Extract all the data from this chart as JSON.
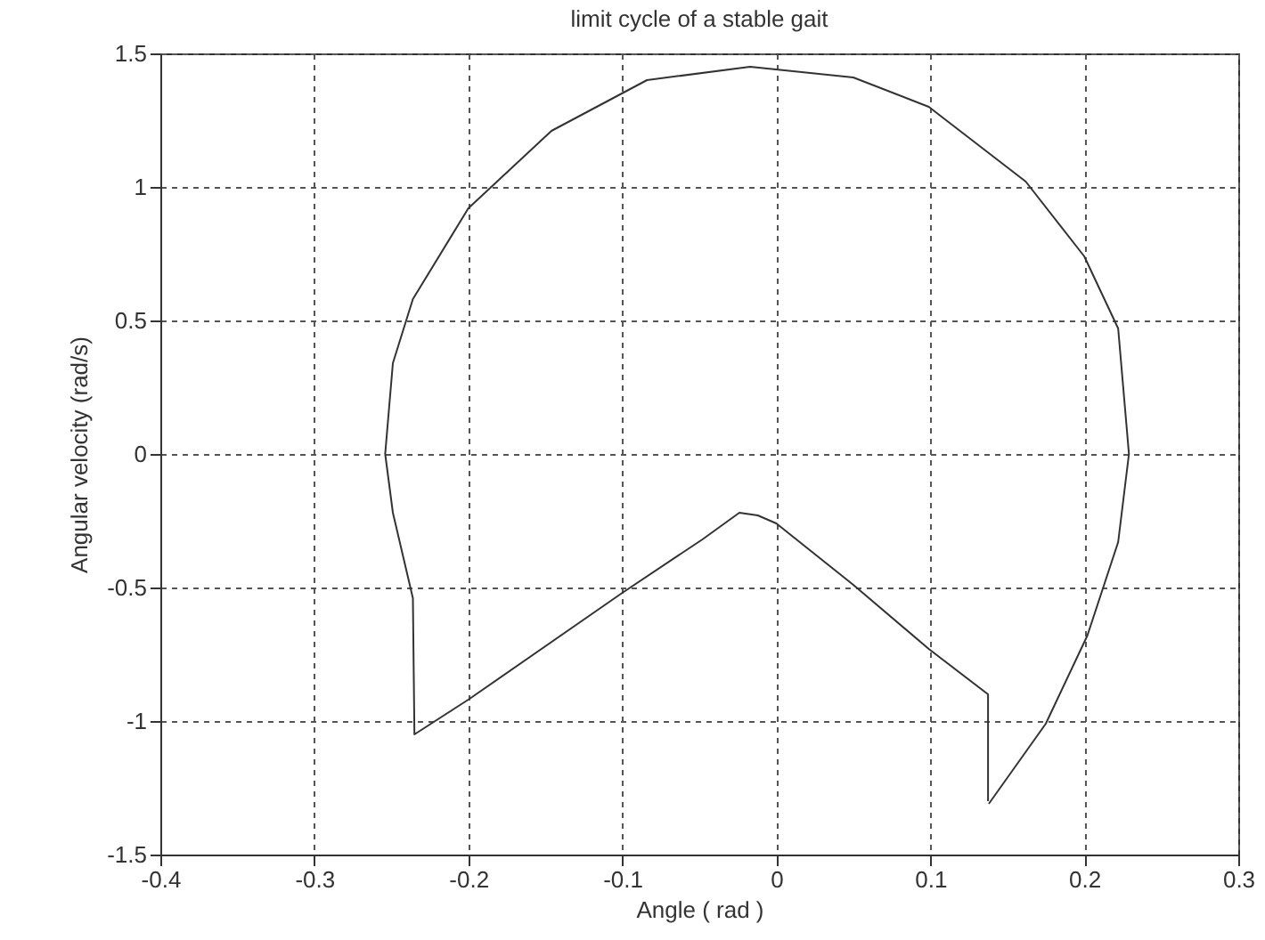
{
  "chart_data": {
    "type": "line",
    "title": "limit cycle of a stable gait",
    "xlabel": "Angle  ( rad )",
    "ylabel": "Angular velocity  (rad/s)",
    "series": [
      {
        "color": "#333333",
        "x": [
          0.138,
          0.175,
          0.202,
          0.222,
          0.229,
          0.222,
          0.2,
          0.162,
          0.099,
          0.05,
          -0.017,
          -0.084,
          -0.146,
          -0.2,
          -0.236,
          -0.249,
          -0.254,
          -0.249,
          -0.236,
          -0.235,
          -0.2,
          -0.1,
          -0.048,
          -0.024,
          -0.012,
          0,
          0.05,
          0.099,
          0.1375,
          0.1375
        ],
        "values": [
          -1.31,
          -1.01,
          -0.68,
          -0.33,
          0,
          0.47,
          0.74,
          1.02,
          1.3,
          1.41,
          1.45,
          1.4,
          1.21,
          0.92,
          0.58,
          0.34,
          0,
          -0.22,
          -0.54,
          -1.05,
          -0.92,
          -0.52,
          -0.32,
          -0.22,
          -0.23,
          -0.26,
          -0.49,
          -0.73,
          -0.9,
          -1.3
        ]
      }
    ],
    "xlim": [
      -0.4,
      0.3
    ],
    "xticks": [
      -0.4,
      -0.3,
      -0.2,
      -0.1,
      0,
      0.1,
      0.2,
      0.3
    ],
    "ylim": [
      -1.5,
      1.5
    ],
    "yticks": [
      -1.5,
      -1,
      -0.5,
      0,
      0.5,
      1,
      1.5
    ],
    "grid": true,
    "line_style": "solid"
  }
}
